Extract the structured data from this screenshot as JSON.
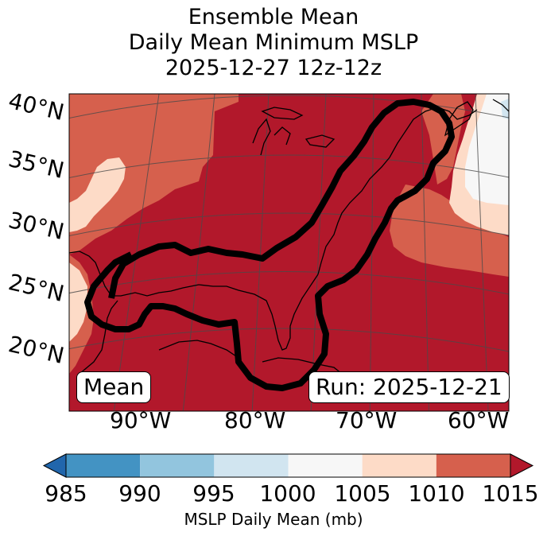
{
  "title": {
    "line1": "Ensemble Mean",
    "line2": "Daily Mean Minimum MSLP",
    "line3": "2025-12-27 12z-12z"
  },
  "lat_labels": [
    "40°N",
    "35°N",
    "30°N",
    "25°N",
    "20°N"
  ],
  "lon_labels": [
    "90°W",
    "80°W",
    "70°W",
    "60°W"
  ],
  "boxes": {
    "mean": "Mean",
    "run": "Run: 2025-12-21"
  },
  "colorbar": {
    "ticks": [
      "985",
      "990",
      "995",
      "1000",
      "1005",
      "1010",
      "1015"
    ],
    "label": "MSLP Daily Mean (mb)",
    "bins": [
      {
        "from": 985,
        "to": 990,
        "color": "#4393c3"
      },
      {
        "from": 990,
        "to": 995,
        "color": "#92c5de"
      },
      {
        "from": 995,
        "to": 1000,
        "color": "#d1e5f0"
      },
      {
        "from": 1000,
        "to": 1005,
        "color": "#f7f7f7"
      },
      {
        "from": 1005,
        "to": 1010,
        "color": "#fddbc7"
      },
      {
        "from": 1010,
        "to": 1015,
        "color": "#d6604d"
      }
    ],
    "under_color": "#2166ac",
    "over_color": "#b2182b"
  },
  "fill_colors": {
    "over_1015": "#b2182b",
    "1010_1015": "#d6604d",
    "1005_1010": "#fddbc7",
    "1000_1005": "#f7f7f7",
    "995_1000": "#d1e5f0"
  }
}
